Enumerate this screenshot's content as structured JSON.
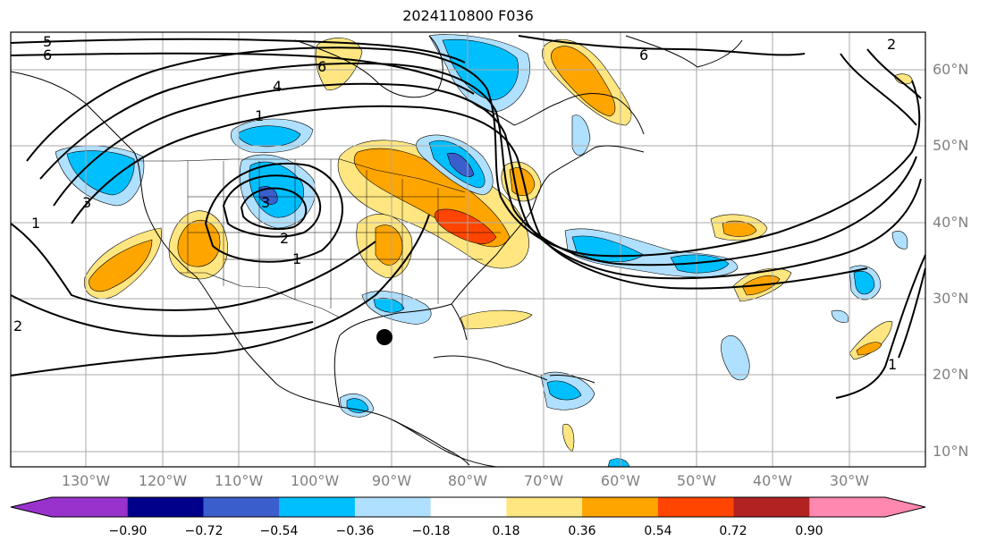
{
  "title": "2024110800 F036",
  "map": {
    "projection": "plate-carree",
    "lon_range": [
      -142,
      -20
    ],
    "lat_range": [
      7,
      65
    ],
    "marker": {
      "lon": -91,
      "lat": 25,
      "color": "#000000"
    }
  },
  "lat_labels": [
    "60°N",
    "50°N",
    "40°N",
    "30°N",
    "20°N",
    "10°N"
  ],
  "lon_labels": [
    "130°W",
    "120°W",
    "110°W",
    "100°W",
    "90°W",
    "80°W",
    "70°W",
    "60°W",
    "50°W",
    "40°W",
    "30°W"
  ],
  "contour_labels": [
    "5",
    "6",
    "6",
    "6",
    "1",
    "4",
    "3",
    "2",
    "1",
    "2",
    "3",
    "1",
    "1",
    "2"
  ],
  "colorbar": {
    "ticks": [
      "−0.90",
      "−0.72",
      "−0.54",
      "−0.36",
      "−0.18",
      "0.18",
      "0.36",
      "0.54",
      "0.72",
      "0.90"
    ],
    "colors": [
      "#9932cc",
      "#00008b",
      "#3a5fcd",
      "#00bfff",
      "#b0e0ff",
      "#ffffff",
      "#ffe680",
      "#ffa500",
      "#ff4500",
      "#b22222",
      "#ff88b0",
      "#ff88b0"
    ]
  }
}
